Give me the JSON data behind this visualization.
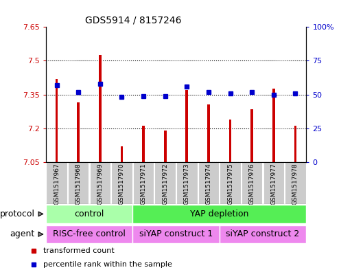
{
  "title": "GDS5914 / 8157246",
  "samples": [
    "GSM1517967",
    "GSM1517968",
    "GSM1517969",
    "GSM1517970",
    "GSM1517971",
    "GSM1517972",
    "GSM1517973",
    "GSM1517974",
    "GSM1517975",
    "GSM1517976",
    "GSM1517977",
    "GSM1517978"
  ],
  "transformed_count": [
    7.42,
    7.315,
    7.525,
    7.12,
    7.21,
    7.19,
    7.37,
    7.305,
    7.24,
    7.285,
    7.375,
    7.21
  ],
  "percentile_rank": [
    57,
    52,
    58,
    48,
    49,
    49,
    56,
    52,
    51,
    52,
    50,
    51
  ],
  "ylim_left": [
    7.05,
    7.65
  ],
  "ylim_right": [
    0,
    100
  ],
  "yticks_left": [
    7.05,
    7.2,
    7.35,
    7.5,
    7.65
  ],
  "yticks_right": [
    0,
    25,
    50,
    75,
    100
  ],
  "ytick_labels_left": [
    "7.05",
    "7.2",
    "7.35",
    "7.5",
    "7.65"
  ],
  "ytick_labels_right": [
    "0",
    "25",
    "50",
    "75",
    "100%"
  ],
  "bar_color": "#cc0000",
  "dot_color": "#0000cc",
  "bar_bottom": 7.05,
  "bar_width": 0.12,
  "protocol_groups": [
    {
      "label": "control",
      "start": 0,
      "end": 4,
      "color": "#aaffaa"
    },
    {
      "label": "YAP depletion",
      "start": 4,
      "end": 12,
      "color": "#55ee55"
    }
  ],
  "agent_groups": [
    {
      "label": "RISC-free control",
      "start": 0,
      "end": 4,
      "color": "#ee88ee"
    },
    {
      "label": "siYAP construct 1",
      "start": 4,
      "end": 8,
      "color": "#ee88ee"
    },
    {
      "label": "siYAP construct 2",
      "start": 8,
      "end": 12,
      "color": "#ee88ee"
    }
  ],
  "legend_items": [
    {
      "label": "transformed count",
      "color": "#cc0000"
    },
    {
      "label": "percentile rank within the sample",
      "color": "#0000cc"
    }
  ],
  "protocol_label": "protocol",
  "agent_label": "agent",
  "tickbox_color": "#cccccc"
}
